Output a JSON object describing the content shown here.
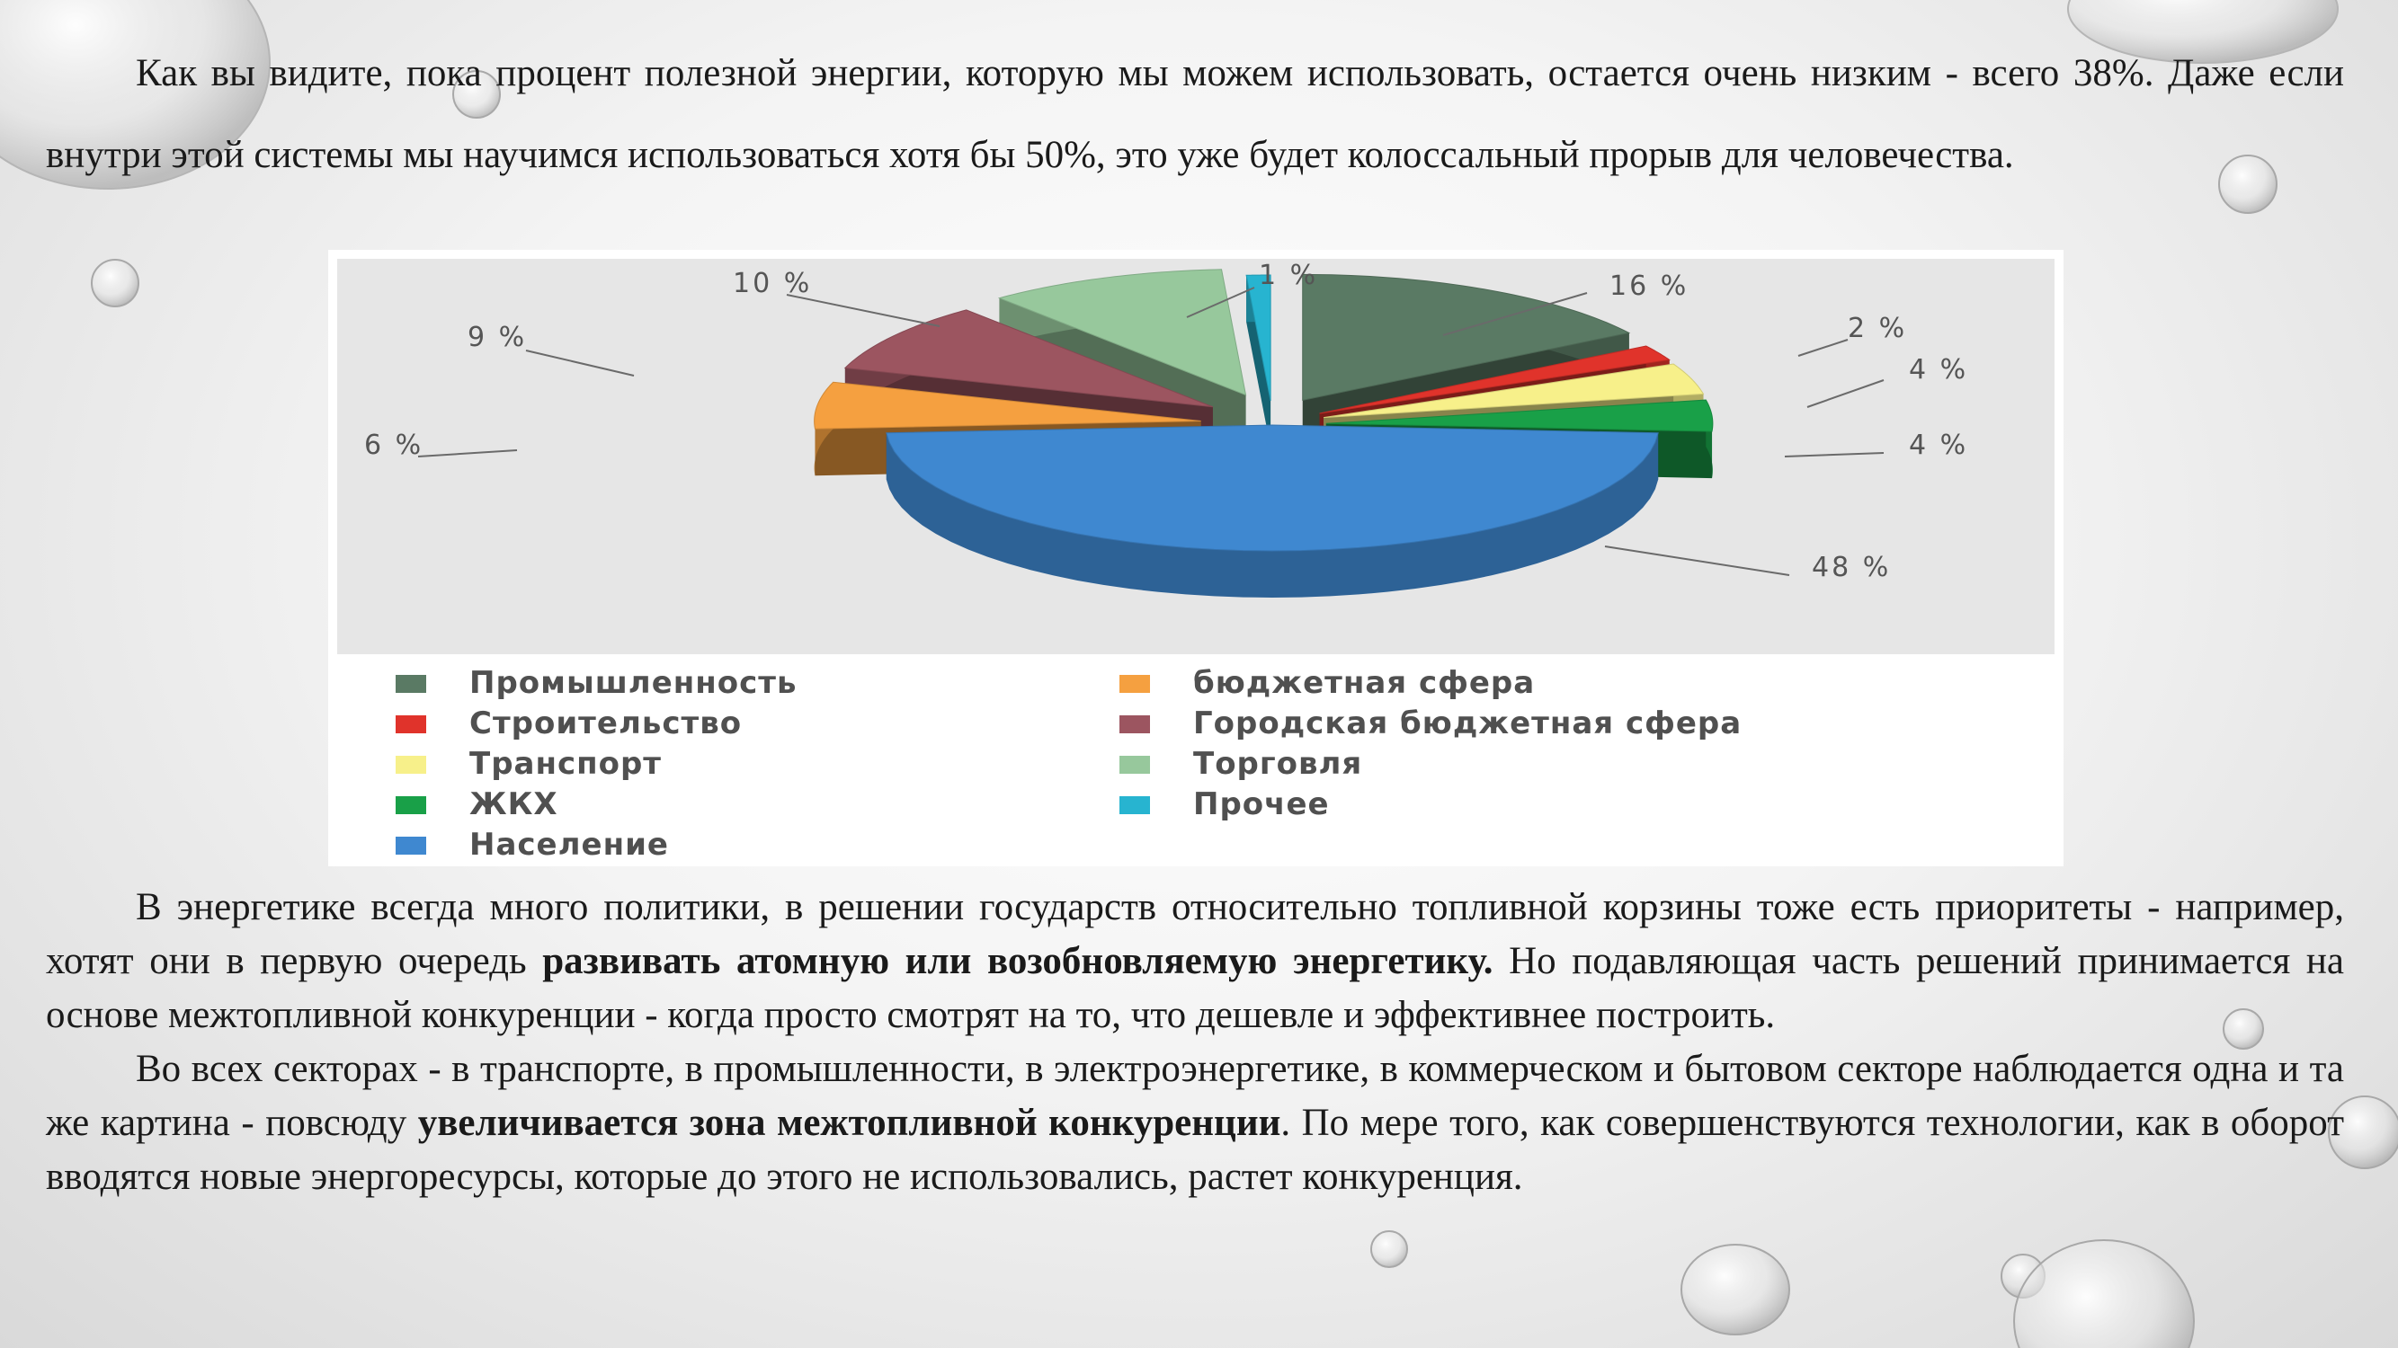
{
  "intro_text": "Как вы видите, пока процент полезной энергии, которую мы можем использовать, остается очень низким - всего 38%. Даже если внутри этой системы мы научимся использоваться хотя бы 50%, это уже будет колоссальный прорыв для человечества.",
  "paragraph2": {
    "part1": "В энергетике всегда много политики, в решении государств относительно топливной корзины тоже есть приоритеты - например, хотят они в первую очередь ",
    "bold": "развивать атомную или возобновляемую энергетику.",
    "part2": " Но подавляющая часть решений принимается       на основе межтопливной конкуренции - когда просто смотрят на то, что дешевле и эффективнее построить."
  },
  "paragraph3": {
    "part1": "Во всех секторах - в транспорте, в промышленности, в электроэнергетике, в коммерческом и бытовом секторе наблюдается одна и та же картина - повсюду ",
    "bold": "увеличивается зона межтопливной конкуренции",
    "part2": ". По мере того, как совершенствуются технологии, как в оборот вводятся новые энергоресурсы, которые до этого не использовались, растет конкуренция."
  },
  "chart_data": {
    "type": "pie",
    "title": "",
    "style": "3d-exploded",
    "legend_position": "bottom",
    "slices": [
      {
        "name": "Промышленность",
        "value": 16,
        "label": "16 %",
        "color": "#5a7a64"
      },
      {
        "name": "Строительство",
        "value": 2,
        "label": "2 %",
        "color": "#e0332b"
      },
      {
        "name": "Транспорт",
        "value": 4,
        "label": "4 %",
        "color": "#f7f08a"
      },
      {
        "name": "ЖКХ",
        "value": 4,
        "label": "4 %",
        "color": "#19a048"
      },
      {
        "name": "Население",
        "value": 48,
        "label": "48 %",
        "color": "#3f88d0"
      },
      {
        "name": "бюджетная сфера",
        "value": 6,
        "label": "6 %",
        "color": "#f5a040"
      },
      {
        "name": "Городская бюджетная сфера",
        "value": 9,
        "label": "9 %",
        "color": "#9c5560"
      },
      {
        "name": "Торговля",
        "value": 10,
        "label": "10 %",
        "color": "#97c89c"
      },
      {
        "name": "Прочее",
        "value": 1,
        "label": "1 %",
        "color": "#27b4d0"
      }
    ]
  }
}
